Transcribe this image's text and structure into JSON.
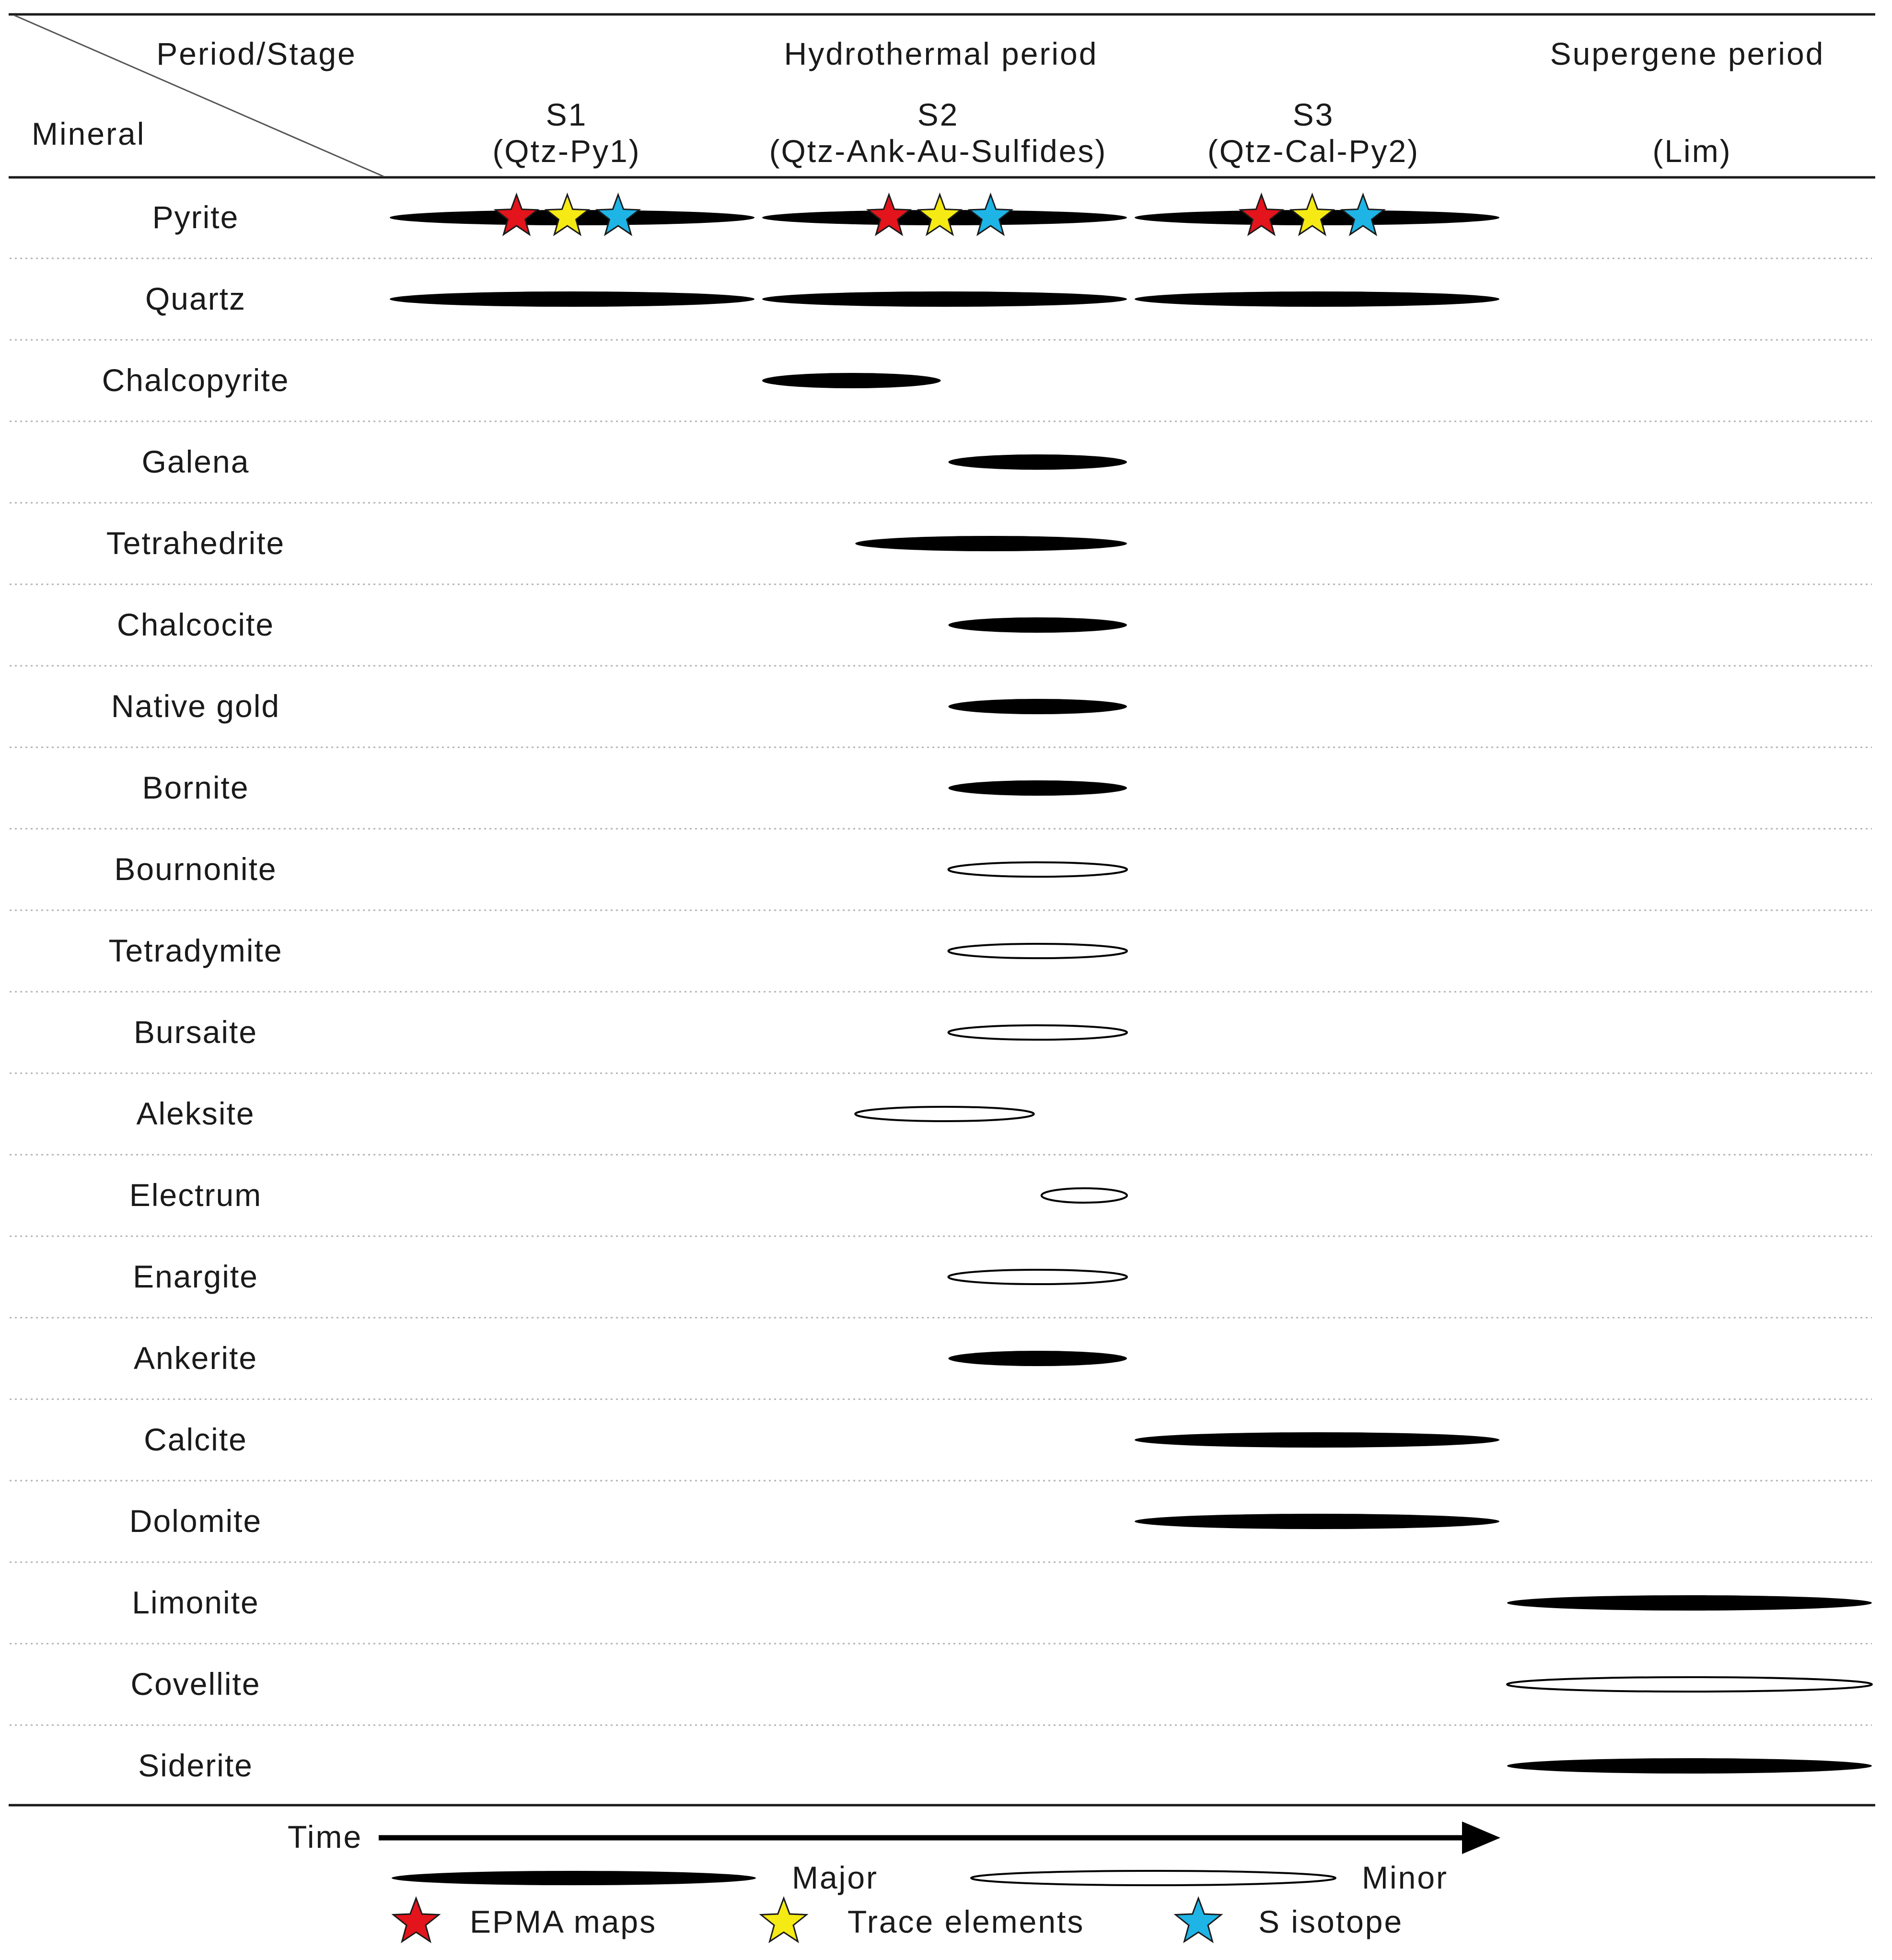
{
  "header": {
    "corner_top": "Period/Stage",
    "corner_bottom": "Mineral",
    "hydrothermal_period": "Hydrothermal period",
    "supergene_period": "Supergene period",
    "stages": [
      {
        "name": "S1",
        "sub": "(Qtz-Py1)"
      },
      {
        "name": "S2",
        "sub": "(Qtz-Ank-Au-Sulfides)"
      },
      {
        "name": "S3",
        "sub": "(Qtz-Cal-Py2)"
      },
      {
        "name": "",
        "sub": "(Lim)"
      }
    ]
  },
  "chart_data": {
    "type": "paragenetic-sequence",
    "time_axis_label": "Time",
    "stage_order": [
      "S1",
      "S2",
      "S3",
      "Supergene (Lim)"
    ],
    "time_units": "stage (0 = start of S1, 4 = end of supergene)",
    "minerals": [
      {
        "name": "Pyrite",
        "segments": [
          {
            "start": 0.0,
            "end": 1.0,
            "abundance": "major"
          },
          {
            "start": 1.0,
            "end": 2.0,
            "abundance": "major"
          },
          {
            "start": 2.0,
            "end": 3.0,
            "abundance": "major"
          }
        ],
        "markers": [
          {
            "stage": "S1",
            "symbols": [
              "EPMA maps",
              "Trace elements",
              "S isotope"
            ]
          },
          {
            "stage": "S2",
            "symbols": [
              "EPMA maps",
              "Trace elements",
              "S isotope"
            ]
          },
          {
            "stage": "S3",
            "symbols": [
              "EPMA maps",
              "Trace elements",
              "S isotope"
            ]
          }
        ]
      },
      {
        "name": "Quartz",
        "segments": [
          {
            "start": 0.0,
            "end": 1.0,
            "abundance": "major"
          },
          {
            "start": 1.0,
            "end": 2.0,
            "abundance": "major"
          },
          {
            "start": 2.0,
            "end": 3.0,
            "abundance": "major"
          }
        ]
      },
      {
        "name": "Chalcopyrite",
        "segments": [
          {
            "start": 1.0,
            "end": 1.5,
            "abundance": "major"
          }
        ]
      },
      {
        "name": "Galena",
        "segments": [
          {
            "start": 1.5,
            "end": 2.0,
            "abundance": "major"
          }
        ]
      },
      {
        "name": "Tetrahedrite",
        "segments": [
          {
            "start": 1.25,
            "end": 2.0,
            "abundance": "major"
          }
        ]
      },
      {
        "name": "Chalcocite",
        "segments": [
          {
            "start": 1.5,
            "end": 2.0,
            "abundance": "major"
          }
        ]
      },
      {
        "name": "Native  gold",
        "segments": [
          {
            "start": 1.5,
            "end": 2.0,
            "abundance": "major"
          }
        ]
      },
      {
        "name": "Bornite",
        "segments": [
          {
            "start": 1.5,
            "end": 2.0,
            "abundance": "major"
          }
        ]
      },
      {
        "name": "Bournonite",
        "segments": [
          {
            "start": 1.5,
            "end": 2.0,
            "abundance": "minor"
          }
        ]
      },
      {
        "name": "Tetradymite",
        "segments": [
          {
            "start": 1.5,
            "end": 2.0,
            "abundance": "minor"
          }
        ]
      },
      {
        "name": "Bursaite",
        "segments": [
          {
            "start": 1.5,
            "end": 2.0,
            "abundance": "minor"
          }
        ]
      },
      {
        "name": "Aleksite",
        "segments": [
          {
            "start": 1.25,
            "end": 1.75,
            "abundance": "minor"
          }
        ]
      },
      {
        "name": "Electrum",
        "segments": [
          {
            "start": 1.75,
            "end": 2.0,
            "abundance": "minor"
          }
        ]
      },
      {
        "name": "Enargite",
        "segments": [
          {
            "start": 1.5,
            "end": 2.0,
            "abundance": "minor"
          }
        ]
      },
      {
        "name": "Ankerite",
        "segments": [
          {
            "start": 1.5,
            "end": 2.0,
            "abundance": "major"
          }
        ]
      },
      {
        "name": "Calcite",
        "segments": [
          {
            "start": 2.0,
            "end": 3.0,
            "abundance": "major"
          }
        ]
      },
      {
        "name": "Dolomite",
        "segments": [
          {
            "start": 2.0,
            "end": 3.0,
            "abundance": "major"
          }
        ]
      },
      {
        "name": "Limonite",
        "segments": [
          {
            "start": 3.0,
            "end": 4.0,
            "abundance": "major"
          }
        ]
      },
      {
        "name": "Covellite",
        "segments": [
          {
            "start": 3.0,
            "end": 4.0,
            "abundance": "minor"
          }
        ]
      },
      {
        "name": "Siderite",
        "segments": [
          {
            "start": 3.0,
            "end": 4.0,
            "abundance": "major"
          }
        ]
      }
    ],
    "legend": {
      "major": "Major",
      "minor": "Minor",
      "symbols": [
        {
          "label": "EPMA maps",
          "color": "#e3141b"
        },
        {
          "label": "Trace elements",
          "color": "#f5ea14"
        },
        {
          "label": "S isotope",
          "color": "#1eb4e6"
        }
      ]
    }
  },
  "colors": {
    "text": "#1a1a1a",
    "bar_fill": "#000000",
    "divider": "#b3b3b3",
    "rule": "#1a1a1a"
  }
}
